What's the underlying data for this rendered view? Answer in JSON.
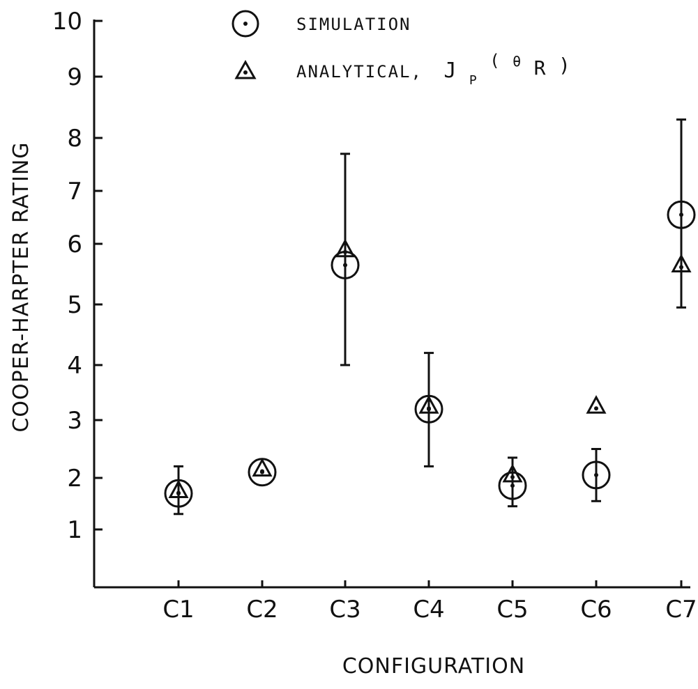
{
  "chart_data": {
    "type": "scatter",
    "xlabel": "CONFIGURATION",
    "ylabel": "COOPER-HARPTER RATING",
    "categories": [
      "C1",
      "C2",
      "C3",
      "C4",
      "C5",
      "C6",
      "C7"
    ],
    "y_ticks": [
      1,
      2,
      3,
      4,
      5,
      6,
      7,
      8,
      9,
      10
    ],
    "y_tick_labels": [
      "1",
      "2",
      "3",
      "4",
      "5",
      "6",
      "7",
      "8",
      "9",
      "10"
    ],
    "ylim": [
      0,
      10
    ],
    "grid": false,
    "legend_position": "top-center",
    "series": [
      {
        "name": "SIMULATION",
        "marker": "circle-dot",
        "values": [
          1.7,
          2.1,
          5.65,
          3.2,
          1.85,
          2.05,
          6.55
        ],
        "error_low": [
          1.3,
          null,
          4.0,
          2.2,
          1.45,
          1.55,
          4.95
        ],
        "error_high": [
          2.2,
          null,
          7.7,
          4.2,
          2.35,
          2.5,
          8.3
        ]
      },
      {
        "name_prefix": "ANALYTICAL,",
        "name_formula_main": "J",
        "name_formula_sub1": "P",
        "name_formula_paren_open": "(",
        "name_formula_theta": "θ",
        "name_formula_sub2": "R",
        "name_formula_paren_close": ")",
        "marker": "triangle-dot",
        "values": [
          1.75,
          2.15,
          5.9,
          3.25,
          2.05,
          3.25,
          5.65
        ]
      }
    ]
  }
}
